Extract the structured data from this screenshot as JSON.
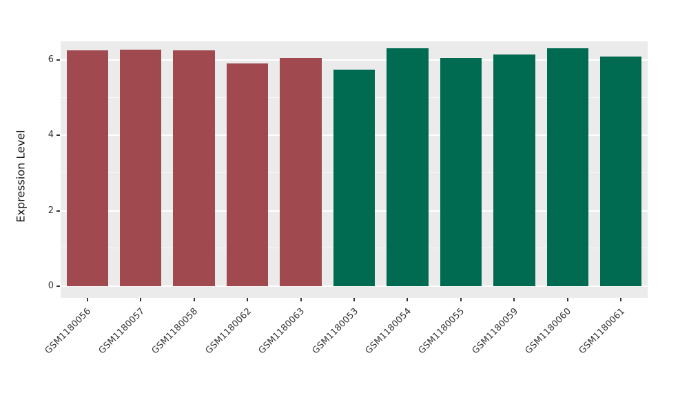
{
  "chart_data": {
    "type": "bar",
    "title": "",
    "xlabel": "",
    "ylabel": "Expression Level",
    "ylim": [
      0,
      6.5
    ],
    "yticks": [
      0,
      2,
      4,
      6
    ],
    "minor_gridlines": [
      1,
      3,
      5
    ],
    "grid": true,
    "legend_position": "none",
    "panel_bg": "#EBEBEB",
    "grid_color": "#FFFFFF",
    "categories": [
      "GSM1180056",
      "GSM1180057",
      "GSM1180058",
      "GSM1180062",
      "GSM1180063",
      "GSM1180053",
      "GSM1180054",
      "GSM1180055",
      "GSM1180059",
      "GSM1180060",
      "GSM1180061"
    ],
    "values": [
      6.25,
      6.27,
      6.25,
      5.9,
      6.05,
      5.75,
      6.32,
      6.05,
      6.15,
      6.32,
      6.1
    ],
    "bar_colors": [
      "#A04A50",
      "#A04A50",
      "#A04A50",
      "#A04A50",
      "#A04A50",
      "#006B50",
      "#006B50",
      "#006B50",
      "#006B50",
      "#006B50",
      "#006B50"
    ],
    "group_colors": {
      "group1": "#A04A50",
      "group2": "#006B50"
    }
  }
}
